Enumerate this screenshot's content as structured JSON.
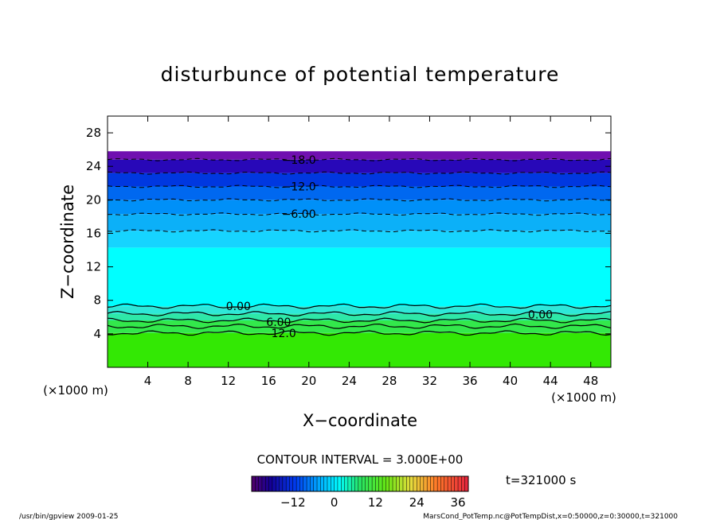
{
  "chart_data": {
    "type": "heatmap",
    "title": "disturbunce of potential temperature",
    "xlabel": "X−coordinate",
    "ylabel": "Z−coordinate",
    "x_unit_left": "(×1000 m)",
    "x_unit_right": "(×1000 m)",
    "xlim": [
      0,
      50
    ],
    "ylim": [
      0,
      30
    ],
    "x_ticks": [
      4,
      8,
      12,
      16,
      20,
      24,
      28,
      32,
      36,
      40,
      44,
      48
    ],
    "y_ticks": [
      4,
      8,
      12,
      16,
      20,
      24,
      28
    ],
    "grid": false,
    "bands": [
      {
        "z0": 0,
        "z1": 4.1,
        "value": 12,
        "color": "#33e804"
      },
      {
        "z0": 4.1,
        "z1": 5.6,
        "value": 9,
        "color": "#33e84b"
      },
      {
        "z0": 5.6,
        "z1": 6.4,
        "value": 6,
        "color": "#2ee8a8"
      },
      {
        "z0": 6.4,
        "z1": 7.3,
        "value": 3,
        "color": "#2ee8d8"
      },
      {
        "z0": 7.3,
        "z1": 14.3,
        "value": 0,
        "color": "#00ffff"
      },
      {
        "z0": 14.3,
        "z1": 16.3,
        "value": -3,
        "color": "#16d4ff"
      },
      {
        "z0": 16.3,
        "z1": 18.3,
        "value": -6,
        "color": "#0cb0f8"
      },
      {
        "z0": 18.3,
        "z1": 20.0,
        "value": -9,
        "color": "#0090f8"
      },
      {
        "z0": 20.0,
        "z1": 21.6,
        "value": -12,
        "color": "#0068f0"
      },
      {
        "z0": 21.6,
        "z1": 23.2,
        "value": -15,
        "color": "#0038e0"
      },
      {
        "z0": 23.2,
        "z1": 24.8,
        "value": -18,
        "color": "#2808b8"
      },
      {
        "z0": 24.8,
        "z1": 25.8,
        "value": -21,
        "color": "#7010b0"
      }
    ],
    "contours": [
      {
        "value": -18,
        "z": 24.8,
        "dashed": true
      },
      {
        "value": -15,
        "z": 23.2,
        "dashed": true
      },
      {
        "value": -12,
        "z": 21.6,
        "dashed": true
      },
      {
        "value": -9,
        "z": 20.0,
        "dashed": true
      },
      {
        "value": -6,
        "z": 18.3,
        "dashed": true
      },
      {
        "value": -3,
        "z": 16.3,
        "dashed": true
      },
      {
        "value": 0,
        "z": 7.3,
        "dashed": false
      },
      {
        "value": 3,
        "z": 6.4,
        "dashed": false
      },
      {
        "value": 6,
        "z": 5.6,
        "dashed": false
      },
      {
        "value": 9,
        "z": 4.9,
        "dashed": false
      },
      {
        "value": 12,
        "z": 4.1,
        "dashed": false
      }
    ],
    "contour_labels": [
      {
        "text": "−18.0",
        "x": 19,
        "z": 24.8
      },
      {
        "text": "−12.0",
        "x": 19,
        "z": 21.6
      },
      {
        "text": "−6.00",
        "x": 19,
        "z": 18.3
      },
      {
        "text": "0.00",
        "x": 13,
        "z": 7.3
      },
      {
        "text": "0.00",
        "x": 43,
        "z": 6.3
      },
      {
        "text": "6.00",
        "x": 17,
        "z": 5.4
      },
      {
        "text": "12.0",
        "x": 17.5,
        "z": 4.1
      }
    ],
    "contour_interval_text": "CONTOUR INTERVAL = 3.000E+00",
    "time_text": "t=321000  s",
    "colorbar": {
      "range": [
        -24,
        39
      ],
      "ticks": [
        -12,
        0,
        12,
        24,
        36
      ]
    }
  },
  "footer": {
    "left": "/usr/bin/gpview   2009-01-25",
    "right": "MarsCond_PotTemp.nc@PotTempDist,x=0:50000,z=0:30000,t=321000"
  }
}
